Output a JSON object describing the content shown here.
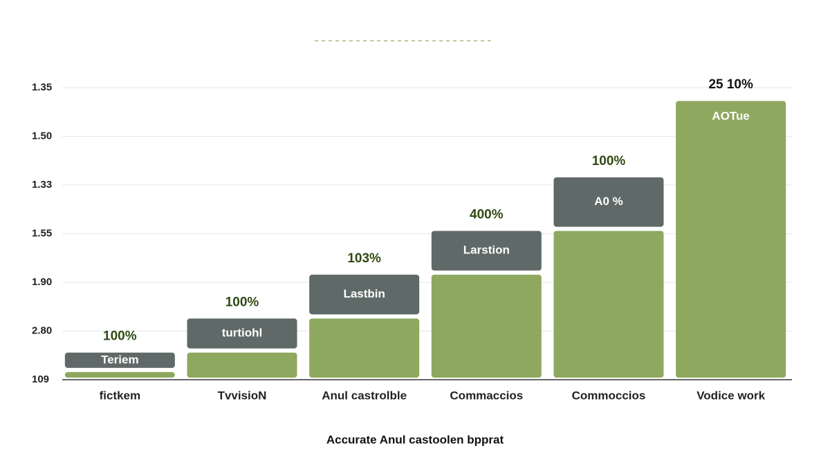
{
  "chart_data": {
    "type": "stacked_bar",
    "categories": [
      "fictkem",
      "TvvisioN",
      "Anul castrolble",
      "Commaccios",
      "Commoccios",
      "Vodice work"
    ],
    "series": [
      {
        "color": "#8fa85f",
        "values": [
          0.2,
          0.6,
          1.3,
          2.2,
          3.1,
          5.77
        ],
        "labels": [
          null,
          null,
          null,
          null,
          null,
          "AOTue"
        ]
      },
      {
        "color": "#5f6a68",
        "values": [
          0.4,
          0.7,
          0.9,
          0.9,
          1.1,
          null
        ],
        "labels": [
          "Teriem",
          "turtiohl",
          "Lastbin",
          "Larstion",
          "A0 %",
          null
        ]
      }
    ],
    "annotations": [
      "100%",
      "100%",
      "103%",
      "400%",
      "100%",
      "25 10%"
    ],
    "x_label": "Accurate Anul castoolen bpprat",
    "ylim": [
      0,
      6.3
    ],
    "yticks": [
      {
        "value": 0,
        "label": "109"
      },
      {
        "value": 1,
        "label": "2.80"
      },
      {
        "value": 2,
        "label": "1.90"
      },
      {
        "value": 3,
        "label": "1.55"
      },
      {
        "value": 4,
        "label": "1.33"
      },
      {
        "value": 5,
        "label": "1.50"
      },
      {
        "value": 6,
        "label": "1.35"
      }
    ],
    "grid": true
  }
}
